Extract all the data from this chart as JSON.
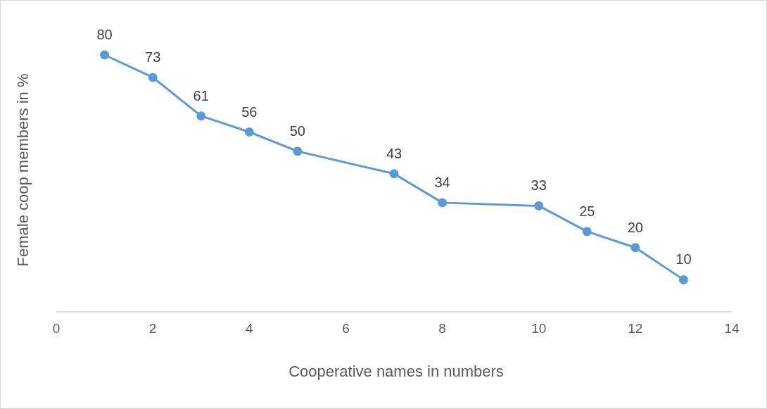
{
  "chart_data": {
    "type": "line",
    "xlabel": "Cooperative names in numbers",
    "ylabel": "Female coop members in %",
    "x": [
      1,
      2,
      3,
      4,
      5,
      7,
      8,
      10,
      11,
      12,
      13
    ],
    "series": [
      {
        "color": "#5b9bd5",
        "values": [
          80,
          73,
          61,
          56,
          50,
          43,
          34,
          33,
          25,
          20,
          10
        ]
      }
    ],
    "xlim": [
      0,
      14
    ],
    "xticks": [
      0,
      2,
      4,
      6,
      8,
      10,
      12,
      14
    ],
    "tick_labels": "x",
    "data_labels": true,
    "marker": "circle",
    "grid": false
  }
}
